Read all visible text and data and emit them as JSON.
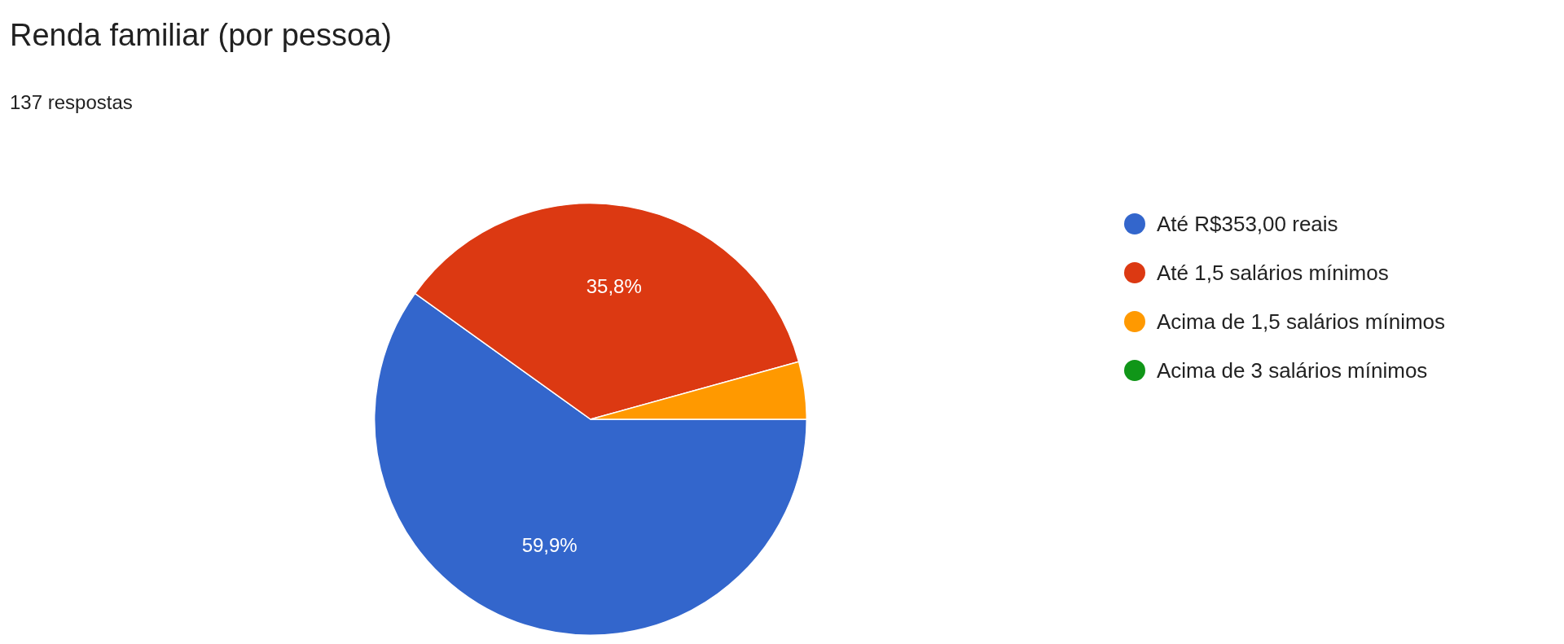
{
  "chart_data": {
    "type": "pie",
    "title": "Renda familiar (por pessoa)",
    "subtitle": "137 respostas",
    "categories": [
      "Até R$353,00 reais",
      "Até 1,5 salários mínimos",
      "Acima de 1,5 salários mínimos",
      "Acima de 3 salários mínimos"
    ],
    "values": [
      59.9,
      35.8,
      4.3,
      0
    ],
    "colors": [
      "#3366cc",
      "#dc3912",
      "#ff9900",
      "#109618"
    ],
    "value_labels": [
      "59,9%",
      "35,8%",
      null,
      null
    ],
    "legend": "right"
  }
}
